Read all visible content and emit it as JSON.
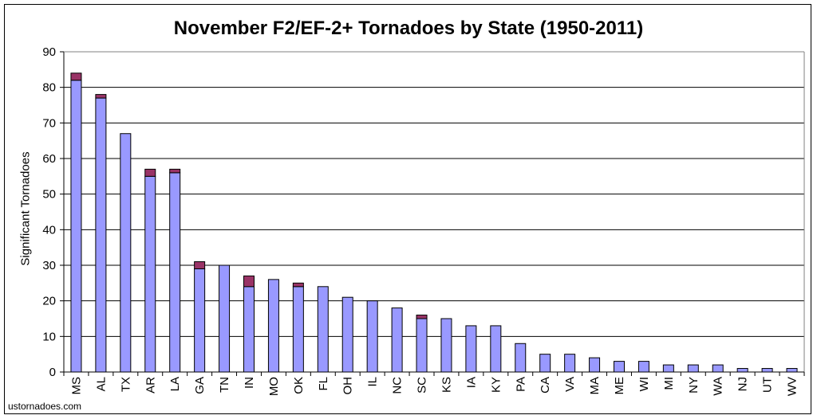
{
  "chart_data": {
    "type": "bar",
    "stacked": true,
    "title": "November F2/EF-2+ Tornadoes by State (1950-2011)",
    "xlabel": "",
    "ylabel": "Significant Tornadoes",
    "ylim": [
      0,
      90
    ],
    "yticks": [
      0,
      10,
      20,
      30,
      40,
      50,
      60,
      70,
      80,
      90
    ],
    "grid": true,
    "categories": [
      "MS",
      "AL",
      "TX",
      "AR",
      "LA",
      "GA",
      "TN",
      "IN",
      "MO",
      "OK",
      "FL",
      "OH",
      "IL",
      "NC",
      "SC",
      "KS",
      "IA",
      "KY",
      "PA",
      "CA",
      "VA",
      "MA",
      "ME",
      "WI",
      "MI",
      "NY",
      "WA",
      "NJ",
      "UT",
      "WV"
    ],
    "series": [
      {
        "color": "#9999ff",
        "values": [
          82,
          77,
          67,
          55,
          56,
          29,
          30,
          24,
          26,
          24,
          24,
          21,
          20,
          18,
          15,
          15,
          13,
          13,
          8,
          5,
          5,
          4,
          3,
          3,
          2,
          2,
          2,
          1,
          1,
          1
        ]
      },
      {
        "color": "#993366",
        "values": [
          2,
          1,
          0,
          2,
          1,
          2,
          0,
          3,
          0,
          1,
          0,
          0,
          0,
          0,
          1,
          0,
          0,
          0,
          0,
          0,
          0,
          0,
          0,
          0,
          0,
          0,
          0,
          0,
          0,
          0
        ]
      }
    ]
  },
  "credit": "ustornadoes.com"
}
